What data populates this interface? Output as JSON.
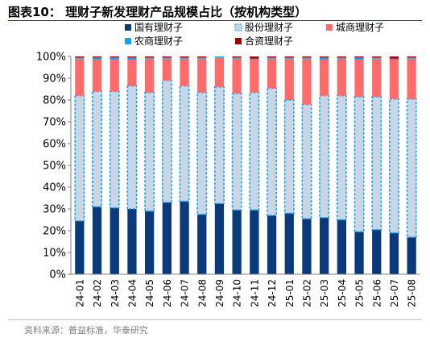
{
  "header": {
    "title": "图表10：  理财子新发理财产品规模占比（按机构类型）"
  },
  "footer": {
    "source": "资料来源：普益标准，华泰研究"
  },
  "colors": {
    "state_owned": "#0b3a7a",
    "joint_stock": "#c9d6e6",
    "joint_stock_border": "#1aa3e8",
    "city_commercial": "#ff6b6b",
    "rural_commercial": "#12a7e6",
    "joint_venture": "#a00000"
  },
  "chart_data": {
    "type": "bar",
    "stacked": true,
    "title": "",
    "xlabel": "",
    "ylabel": "",
    "ylim": [
      0,
      100
    ],
    "yticks": [
      0,
      10,
      20,
      30,
      40,
      50,
      60,
      70,
      80,
      90,
      100
    ],
    "ytick_format": "%",
    "grid": false,
    "legend": "top",
    "categories": [
      "24-01",
      "24-02",
      "24-03",
      "24-04",
      "24-05",
      "24-06",
      "24-07",
      "24-08",
      "24-09",
      "24-10",
      "24-11",
      "24-12",
      "25-01",
      "25-02",
      "25-03",
      "25-04",
      "25-05",
      "25-06",
      "25-07",
      "25-08"
    ],
    "series": [
      {
        "name": "国有理财子",
        "values": [
          24.5,
          31,
          30.5,
          30,
          29,
          33,
          33.5,
          27.5,
          32.5,
          29.5,
          29.5,
          27,
          28,
          25.5,
          26,
          25,
          19.5,
          20.5,
          19,
          17
        ]
      },
      {
        "name": "股份理财子",
        "values": [
          57.5,
          53,
          53.5,
          56.5,
          54.5,
          56,
          53,
          56,
          53.5,
          53.5,
          54,
          58.5,
          52,
          52.5,
          56,
          57,
          62,
          61,
          61.5,
          63.5
        ]
      },
      {
        "name": "城商理财子",
        "values": [
          17,
          14.5,
          14.5,
          12,
          15.5,
          10,
          12.5,
          15.5,
          13.5,
          16,
          15,
          13.5,
          19,
          21,
          16.5,
          17,
          17,
          17.5,
          18,
          18.5
        ]
      },
      {
        "name": "农商理财子",
        "values": [
          0.5,
          1,
          1,
          1,
          0.5,
          0.5,
          0.5,
          0.5,
          0.5,
          0.5,
          0.5,
          0.5,
          0.5,
          0.5,
          1,
          0.5,
          1,
          0.5,
          0.5,
          0.5
        ]
      },
      {
        "name": "合资理财子",
        "values": [
          0.5,
          0.5,
          0.5,
          0.5,
          0.5,
          0.5,
          0.5,
          0.5,
          0,
          0.5,
          1,
          0.5,
          0.5,
          0.5,
          0.5,
          0.5,
          0.5,
          0.5,
          1,
          0.5
        ]
      }
    ]
  }
}
